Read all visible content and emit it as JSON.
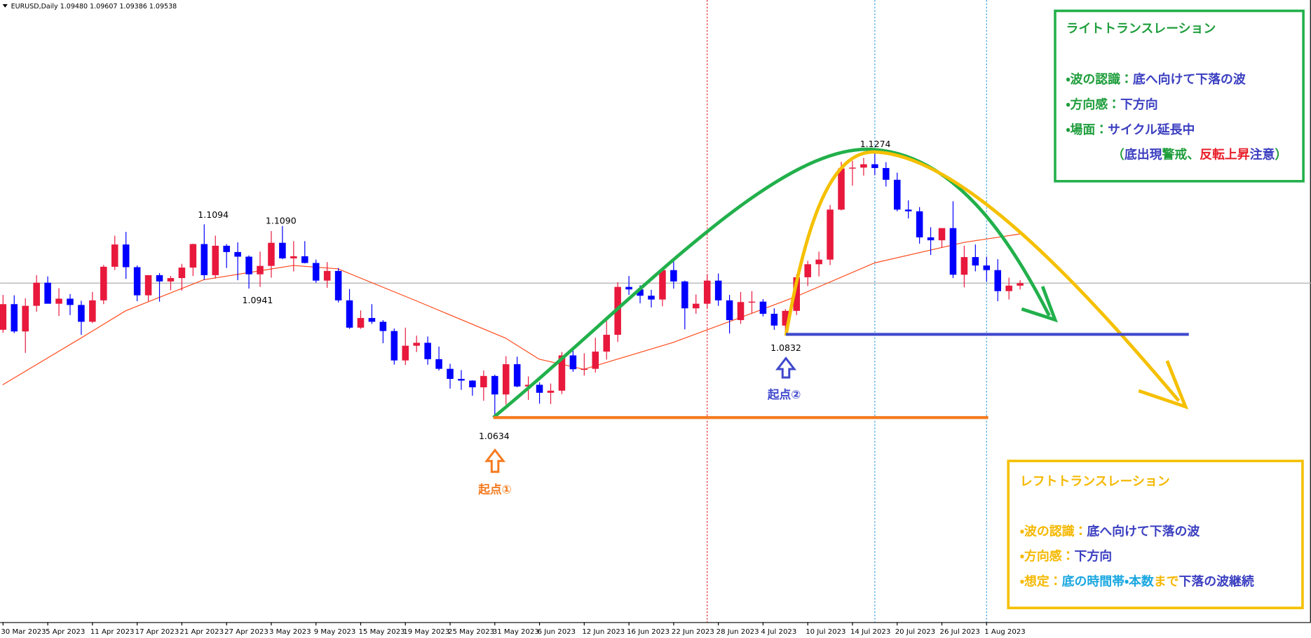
{
  "chart_data": {
    "type": "candlestick",
    "title": "EURUSD,Daily  1.09480 1.09607 1.09386 1.09538",
    "ylim": [
      1.0147,
      1.1628
    ],
    "bull_color": "#e8193c",
    "bear_color": "#0000ff",
    "categories": [
      "30 Mar 2023",
      null,
      null,
      null,
      "5 Apr 2023",
      null,
      null,
      null,
      "11 Apr 2023",
      null,
      null,
      null,
      "17 Apr 2023",
      null,
      null,
      null,
      "21 Apr 2023",
      null,
      null,
      null,
      "27 Apr 2023",
      null,
      null,
      null,
      "3 May 2023",
      null,
      null,
      null,
      "9 May 2023",
      null,
      null,
      null,
      "15 May 2023",
      null,
      null,
      null,
      "19 May 2023",
      null,
      null,
      null,
      "25 May 2023",
      null,
      null,
      null,
      "31 May 2023",
      null,
      null,
      null,
      "6 Jun 2023",
      null,
      null,
      null,
      "12 Jun 2023",
      null,
      null,
      null,
      "16 Jun 2023",
      null,
      null,
      null,
      "22 Jun 2023",
      null,
      null,
      null,
      "28 Jun 2023",
      null,
      null,
      null,
      "4 Jul 2023",
      null,
      null,
      null,
      "10 Jul 2023",
      null,
      null,
      null,
      "14 Jul 2023",
      null,
      null,
      null,
      "20 Jul 2023",
      null,
      null,
      null,
      "26 Jul 2023",
      null,
      null,
      null,
      "1 Aug 2023",
      null,
      null,
      null
    ],
    "candles": [
      [
        1.0843,
        1.0926,
        1.0836,
        1.0904
      ],
      [
        1.0904,
        1.0925,
        1.0835,
        1.0839
      ],
      [
        1.0839,
        1.0918,
        1.0788,
        1.09
      ],
      [
        1.09,
        1.0973,
        1.0886,
        1.0955
      ],
      [
        1.0955,
        1.097,
        1.0912,
        1.0905
      ],
      [
        1.0905,
        1.0942,
        1.0876,
        1.0917
      ],
      [
        1.0917,
        1.0928,
        1.0878,
        1.0902
      ],
      [
        1.0902,
        1.0912,
        1.0831,
        1.0862
      ],
      [
        1.0862,
        1.0933,
        1.0859,
        1.0913
      ],
      [
        1.0913,
        1.0997,
        1.0904,
        1.0993
      ],
      [
        1.0993,
        1.1067,
        1.0985,
        1.1046
      ],
      [
        1.1046,
        1.1076,
        1.0964,
        1.0992
      ],
      [
        1.0992,
        1.0996,
        1.0911,
        1.0925
      ],
      [
        1.0925,
        1.0973,
        1.0911,
        1.0973
      ],
      [
        1.0973,
        1.0978,
        1.091,
        1.0958
      ],
      [
        1.0958,
        1.0971,
        1.0937,
        1.0966
      ],
      [
        1.0966,
        1.1,
        1.0936,
        1.0991
      ],
      [
        1.0991,
        1.1048,
        1.0971,
        1.1047
      ],
      [
        1.1047,
        1.1094,
        1.0962,
        1.0973
      ],
      [
        1.0973,
        1.1067,
        1.0965,
        1.1043
      ],
      [
        1.1043,
        1.1047,
        1.099,
        1.1028
      ],
      [
        1.1028,
        1.1051,
        1.0961,
        1.1017
      ],
      [
        1.1017,
        1.102,
        1.0941,
        1.0975
      ],
      [
        1.0975,
        1.1029,
        1.0945,
        1.0995
      ],
      [
        1.0995,
        1.1078,
        1.0967,
        1.105
      ],
      [
        1.105,
        1.109,
        1.1011,
        1.1013
      ],
      [
        1.1013,
        1.1054,
        1.0982,
        1.1018
      ],
      [
        1.1018,
        1.1054,
        1.1001,
        1.1002
      ],
      [
        1.1002,
        1.101,
        1.0955,
        1.096
      ],
      [
        1.096,
        1.1004,
        1.0943,
        1.0983
      ],
      [
        1.0983,
        1.099,
        1.0908,
        1.0913
      ],
      [
        1.0913,
        1.094,
        1.0845,
        1.0848
      ],
      [
        1.0848,
        1.0889,
        1.0845,
        1.0871
      ],
      [
        1.0871,
        1.0904,
        1.0857,
        1.0862
      ],
      [
        1.0862,
        1.0866,
        1.0811,
        1.084
      ],
      [
        1.084,
        1.0846,
        1.076,
        1.077
      ],
      [
        1.077,
        1.0848,
        1.0759,
        1.0805
      ],
      [
        1.0805,
        1.0829,
        1.079,
        1.0812
      ],
      [
        1.0812,
        1.0827,
        1.076,
        1.0773
      ],
      [
        1.0773,
        1.0803,
        1.0746,
        1.075
      ],
      [
        1.075,
        1.0762,
        1.0703,
        1.0726
      ],
      [
        1.0726,
        1.0747,
        1.07,
        1.0722
      ],
      [
        1.0722,
        1.0723,
        1.0686,
        1.0706
      ],
      [
        1.0706,
        1.0746,
        1.0674,
        1.0733
      ],
      [
        1.0733,
        1.0736,
        1.0634,
        1.0689
      ],
      [
        1.0689,
        1.078,
        1.0665,
        1.0761
      ],
      [
        1.0761,
        1.0779,
        1.0706,
        1.0708
      ],
      [
        1.0708,
        1.0732,
        1.0676,
        1.0712
      ],
      [
        1.0712,
        1.0718,
        1.0667,
        1.0693
      ],
      [
        1.0693,
        1.0715,
        1.0666,
        1.0698
      ],
      [
        1.0698,
        1.079,
        1.069,
        1.0782
      ],
      [
        1.0782,
        1.0799,
        1.0743,
        1.0749
      ],
      [
        1.0749,
        1.0787,
        1.0734,
        1.075
      ],
      [
        1.075,
        1.0824,
        1.0741,
        1.0791
      ],
      [
        1.0791,
        1.0865,
        1.0772,
        1.0831
      ],
      [
        1.0831,
        1.0956,
        1.0814,
        1.0945
      ],
      [
        1.0945,
        1.0971,
        1.0926,
        1.0939
      ],
      [
        1.0939,
        1.0949,
        1.0906,
        1.0924
      ],
      [
        1.0924,
        1.0938,
        1.0896,
        1.0915
      ],
      [
        1.0915,
        1.099,
        1.0899,
        1.0985
      ],
      [
        1.0985,
        1.1012,
        1.0941,
        1.0958
      ],
      [
        1.0958,
        1.096,
        1.0844,
        1.0894
      ],
      [
        1.0894,
        1.0927,
        1.0881,
        1.0905
      ],
      [
        1.0905,
        1.0975,
        1.0894,
        1.096
      ],
      [
        1.096,
        1.0977,
        1.09,
        1.0913
      ],
      [
        1.0913,
        1.0926,
        1.0834,
        1.0866
      ],
      [
        1.0866,
        1.0933,
        1.0857,
        1.0909
      ],
      [
        1.0909,
        1.0935,
        1.0882,
        1.091
      ],
      [
        1.091,
        1.0916,
        1.0875,
        1.0881
      ],
      [
        1.0881,
        1.0894,
        1.0843,
        1.0853
      ],
      [
        1.0853,
        1.0892,
        1.0832,
        1.0888
      ],
      [
        1.0888,
        1.0975,
        1.0878,
        1.0968
      ],
      [
        1.0968,
        1.1007,
        1.0947,
        1.0999
      ],
      [
        1.0999,
        1.1029,
        1.097,
        1.101
      ],
      [
        1.101,
        1.114,
        1.0997,
        1.1129
      ],
      [
        1.1129,
        1.1243,
        1.1127,
        1.1227
      ],
      [
        1.1227,
        1.1245,
        1.1186,
        1.1229
      ],
      [
        1.1229,
        1.1252,
        1.121,
        1.1237
      ],
      [
        1.1237,
        1.1274,
        1.1211,
        1.1228
      ],
      [
        1.1228,
        1.1242,
        1.1184,
        1.12
      ],
      [
        1.12,
        1.1217,
        1.1125,
        1.1129
      ],
      [
        1.1129,
        1.1151,
        1.1108,
        1.1125
      ],
      [
        1.1125,
        1.1135,
        1.1048,
        1.1063
      ],
      [
        1.1063,
        1.1087,
        1.1021,
        1.1056
      ],
      [
        1.1056,
        1.1085,
        1.1038,
        1.1085
      ],
      [
        1.1085,
        1.1149,
        1.0966,
        1.0974
      ],
      [
        1.0974,
        1.1043,
        1.0944,
        1.1016
      ],
      [
        1.1016,
        1.1046,
        1.0982,
        1.0996
      ],
      [
        1.0996,
        1.1017,
        1.0958,
        1.0985
      ],
      [
        1.0985,
        1.1011,
        1.0911,
        1.0935
      ],
      [
        1.0935,
        1.0967,
        1.0915,
        1.0948
      ],
      [
        1.0948,
        1.0961,
        1.0939,
        1.0954
      ]
    ],
    "ma": {
      "color": "#ff4a1c",
      "x": [
        0,
        7,
        11,
        18,
        26,
        30,
        37,
        45,
        48,
        52,
        60,
        67,
        71,
        78,
        86,
        91
      ],
      "values": [
        1.0712,
        1.0823,
        1.0888,
        1.0962,
        1.0996,
        1.0988,
        1.0912,
        1.0823,
        1.0773,
        1.0749,
        1.0813,
        1.0882,
        1.0922,
        1.1002,
        1.1051,
        1.1071
      ]
    },
    "levels": [
      {
        "value": 1.0634,
        "color": "#f47b20"
      },
      {
        "value": 1.0832,
        "color": "#3f48cc"
      }
    ],
    "price_labels": [
      "1.1094",
      "1.1090",
      "1.0941",
      "1.0634",
      "1.0832",
      "1.1274"
    ],
    "origins": [
      {
        "text": "起点①",
        "color": "#f47b20"
      },
      {
        "text": "起点②",
        "color": "#3f48cc"
      }
    ]
  },
  "panels": [
    {
      "title": "ライトトランスレーション",
      "color": "#1f9e3c",
      "border_color": "#22b04b",
      "lines": [
        [
          {
            "text": "・波の認識：",
            "color": "#1f9e3c"
          },
          {
            "text": "底へ向けて下落の波",
            "color": "#3b3fc0"
          }
        ],
        [
          {
            "text": "・方向感：",
            "color": "#1f9e3c"
          },
          {
            "text": "下方向",
            "color": "#3b3fc0"
          }
        ],
        [
          {
            "text": "・場面：",
            "color": "#1f9e3c"
          },
          {
            "text": "サイクル延長中",
            "color": "#3b3fc0"
          }
        ],
        [
          {
            "text": "（",
            "color": "#1f9e3c"
          },
          {
            "text": "底出現",
            "color": "#3b3fc0"
          },
          {
            "text": "警戒、",
            "color": "#1f9e3c"
          },
          {
            "text": "反転上昇",
            "color": "#e8202a"
          },
          {
            "text": "注意",
            "color": "#3b3fc0"
          },
          {
            "text": "）",
            "color": "#1f9e3c"
          }
        ]
      ]
    },
    {
      "title": "レフトトランスレーション",
      "color": "#f5b800",
      "border_color": "#f5c000",
      "lines": [
        [
          {
            "text": "・波の認識：",
            "color": "#f5b800"
          },
          {
            "text": "底へ向けて下落の波",
            "color": "#3b3fc0"
          }
        ],
        [
          {
            "text": "・方向感：",
            "color": "#f5b800"
          },
          {
            "text": "下方向",
            "color": "#3b3fc0"
          }
        ],
        [
          {
            "text": "・想定：",
            "color": "#f5b800"
          },
          {
            "text": "底の時間帯・本数",
            "color": "#1aa7e0"
          },
          {
            "text": "まで",
            "color": "#f5b800"
          },
          {
            "text": "下落の波継続",
            "color": "#3b3fc0"
          }
        ]
      ]
    }
  ]
}
